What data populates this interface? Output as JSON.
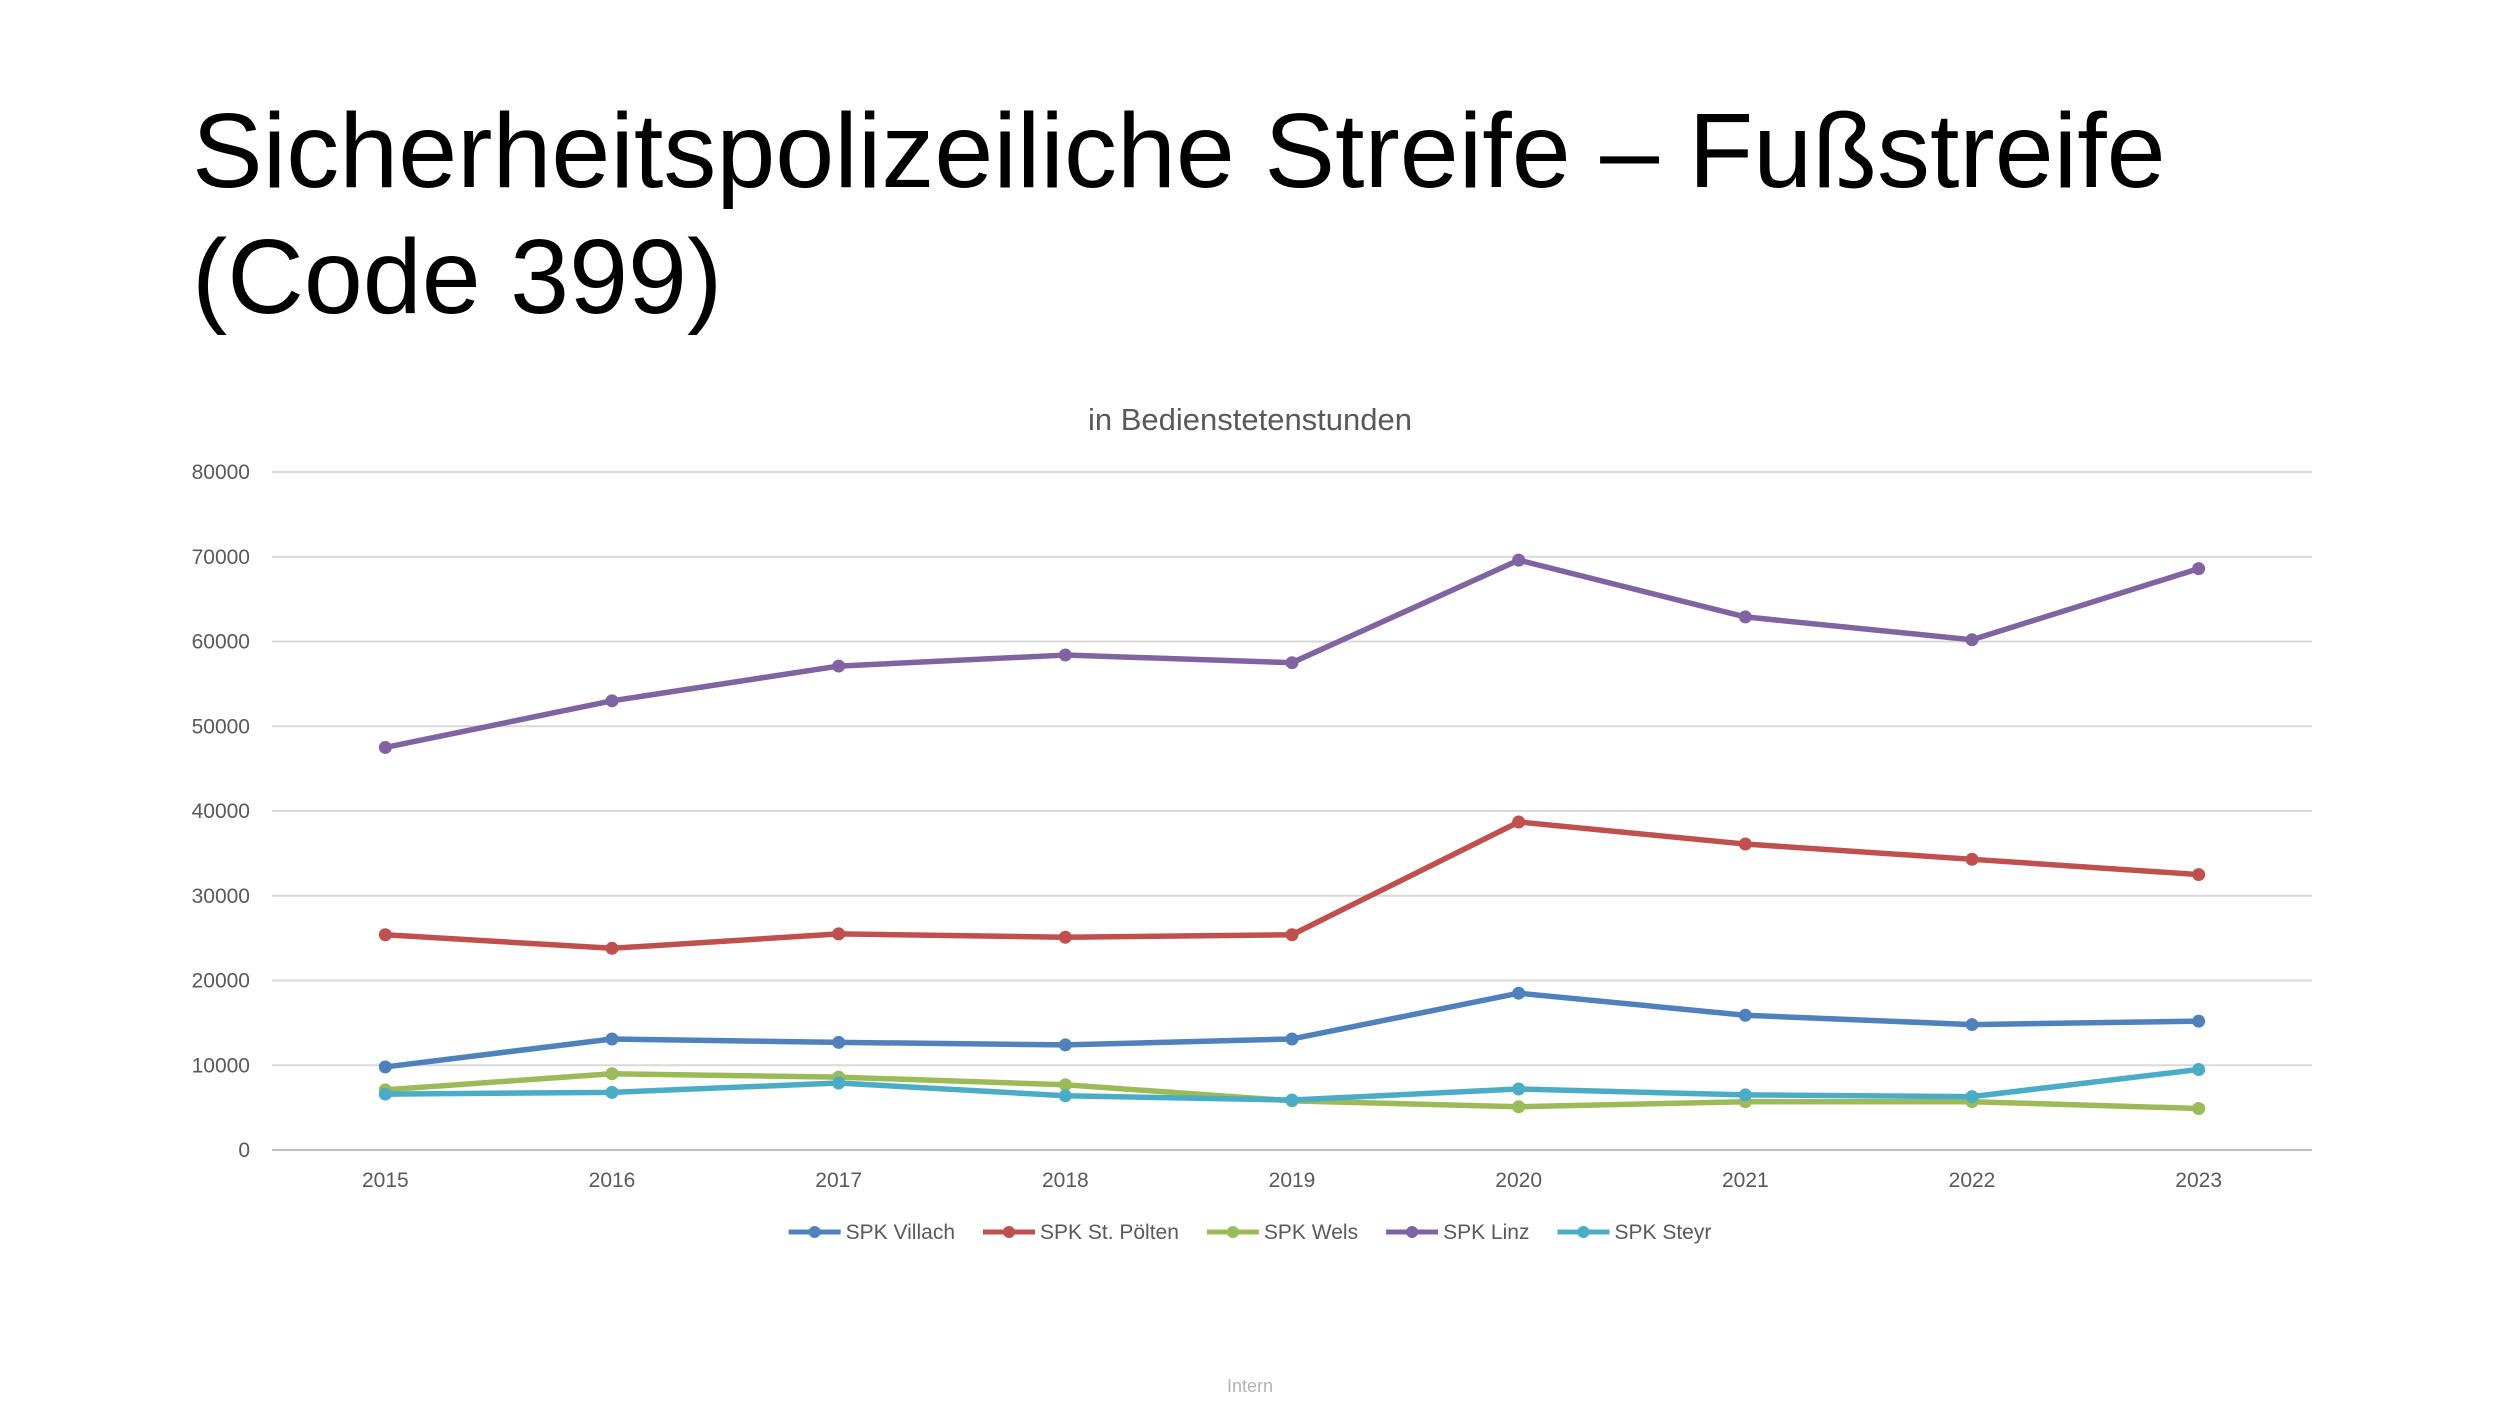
{
  "slide": {
    "title_line1": "Sicherheitspolizeiliche Streife – Fußstreife",
    "title_line2": "(Code 399)",
    "footer": "Intern"
  },
  "chart_data": {
    "type": "line",
    "title": "in Bedienstetenstunden",
    "xlabel": "",
    "ylabel": "",
    "ylim": [
      0,
      80000
    ],
    "yticks": [
      0,
      10000,
      20000,
      30000,
      40000,
      50000,
      60000,
      70000,
      80000
    ],
    "grid": true,
    "legend_position": "bottom",
    "categories": [
      "2015",
      "2016",
      "2017",
      "2018",
      "2019",
      "2020",
      "2021",
      "2022",
      "2023"
    ],
    "series": [
      {
        "name": "SPK Villach",
        "color": "#4f81bd",
        "values": [
          9800,
          13100,
          12700,
          12400,
          13100,
          18500,
          15900,
          14800,
          15200
        ]
      },
      {
        "name": "SPK St. Pölten",
        "color": "#c0504d",
        "values": [
          25400,
          23800,
          25500,
          25100,
          25400,
          38700,
          36100,
          34300,
          32500
        ]
      },
      {
        "name": "SPK Wels",
        "color": "#9bbb59",
        "values": [
          7100,
          9000,
          8600,
          7700,
          5800,
          5100,
          5700,
          5700,
          4900
        ]
      },
      {
        "name": "SPK Linz",
        "color": "#8064a2",
        "values": [
          47500,
          53000,
          57100,
          58400,
          57500,
          69600,
          62900,
          60200,
          68600
        ]
      },
      {
        "name": "SPK Steyr",
        "color": "#4bacc6",
        "values": [
          6600,
          6800,
          7900,
          6400,
          5900,
          7200,
          6500,
          6300,
          9500
        ]
      }
    ]
  }
}
